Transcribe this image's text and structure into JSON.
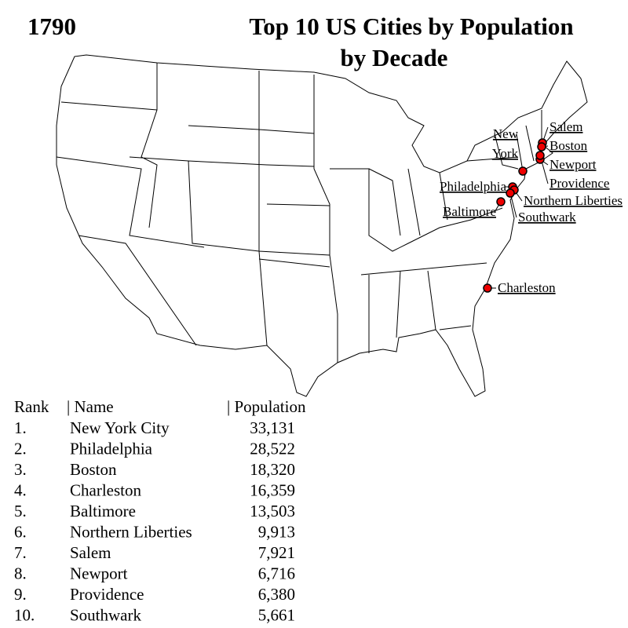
{
  "header": {
    "year": "1790",
    "title_lines": [
      "Top 10 US Cities by Population",
      "by Decade"
    ]
  },
  "map": {
    "labels": [
      {
        "lines": [
          "Salem"
        ]
      },
      {
        "lines": [
          "Boston"
        ]
      },
      {
        "lines": [
          "New",
          "York"
        ]
      },
      {
        "lines": [
          "Newport"
        ]
      },
      {
        "lines": [
          "Providence"
        ]
      },
      {
        "lines": [
          "Philadelphia"
        ]
      },
      {
        "lines": [
          "Northern Liberties"
        ]
      },
      {
        "lines": [
          "Baltimore"
        ]
      },
      {
        "lines": [
          "Southwark"
        ]
      },
      {
        "lines": [
          "Charleston"
        ]
      }
    ]
  },
  "table": {
    "header": [
      "Rank",
      "| Name",
      "| Population"
    ],
    "rows": [
      [
        "1.",
        "New York City",
        "33,131"
      ],
      [
        "2.",
        "Philadelphia",
        "28,522"
      ],
      [
        "3.",
        "Boston",
        "18,320"
      ],
      [
        "4.",
        "Charleston",
        "16,359"
      ],
      [
        "5.",
        "Baltimore",
        "13,503"
      ],
      [
        "6.",
        "Northern Liberties",
        "9,913"
      ],
      [
        "7.",
        "Salem",
        "7,921"
      ],
      [
        "8.",
        "Newport",
        "6,716"
      ],
      [
        "9.",
        "Providence",
        "6,380"
      ],
      [
        "10.",
        "Southwark",
        "5,661"
      ]
    ]
  }
}
